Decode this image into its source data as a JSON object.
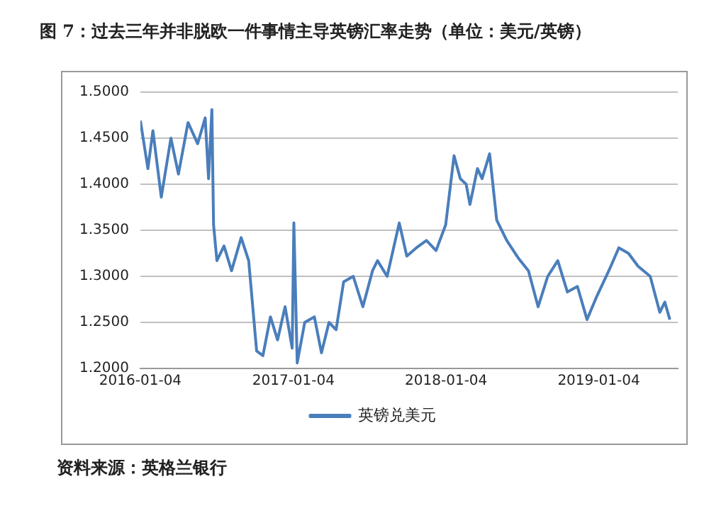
{
  "chart_data": {
    "type": "line",
    "title": "图 7：过去三年并非脱欧一件事情主导英镑汇率走势（单位：美元/英镑）",
    "x": [
      "2016-01-04",
      "2016-01-22",
      "2016-02-03",
      "2016-02-23",
      "2016-03-17",
      "2016-04-04",
      "2016-04-27",
      "2016-05-20",
      "2016-06-07",
      "2016-06-15",
      "2016-06-23",
      "2016-06-27",
      "2016-07-05",
      "2016-07-22",
      "2016-08-09",
      "2016-09-01",
      "2016-09-19",
      "2016-10-08",
      "2016-10-23",
      "2016-11-10",
      "2016-11-27",
      "2016-12-15",
      "2017-01-01",
      "2017-01-05",
      "2017-01-13",
      "2017-01-31",
      "2017-02-23",
      "2017-03-12",
      "2017-03-30",
      "2017-04-16",
      "2017-05-04",
      "2017-05-27",
      "2017-06-19",
      "2017-07-12",
      "2017-07-24",
      "2017-08-16",
      "2017-09-14",
      "2017-10-02",
      "2017-10-25",
      "2017-11-18",
      "2017-12-11",
      "2018-01-03",
      "2018-01-23",
      "2018-02-07",
      "2018-02-21",
      "2018-03-02",
      "2018-03-20",
      "2018-03-31",
      "2018-04-18",
      "2018-05-05",
      "2018-05-29",
      "2018-06-27",
      "2018-07-20",
      "2018-08-12",
      "2018-09-04",
      "2018-09-28",
      "2018-10-21",
      "2018-11-14",
      "2018-12-07",
      "2018-12-30",
      "2019-01-28",
      "2019-02-21",
      "2019-03-16",
      "2019-04-08",
      "2019-05-07",
      "2019-05-30",
      "2019-06-11",
      "2019-06-23"
    ],
    "series": [
      {
        "name": "英镑兑美元",
        "color": "#4a7ebb",
        "values": [
          1.469,
          1.417,
          1.458,
          1.386,
          1.45,
          1.411,
          1.467,
          1.444,
          1.472,
          1.406,
          1.481,
          1.356,
          1.317,
          1.333,
          1.306,
          1.342,
          1.317,
          1.219,
          1.214,
          1.256,
          1.231,
          1.267,
          1.222,
          1.358,
          1.206,
          1.25,
          1.256,
          1.217,
          1.25,
          1.242,
          1.294,
          1.3,
          1.267,
          1.306,
          1.317,
          1.3,
          1.358,
          1.322,
          1.331,
          1.339,
          1.328,
          1.356,
          1.431,
          1.406,
          1.4,
          1.378,
          1.417,
          1.406,
          1.433,
          1.361,
          1.339,
          1.319,
          1.306,
          1.267,
          1.3,
          1.317,
          1.283,
          1.289,
          1.253,
          1.278,
          1.306,
          1.331,
          1.325,
          1.311,
          1.3,
          1.261,
          1.272,
          1.253
        ]
      }
    ],
    "xlim": [
      "2016-01-04",
      "2019-07-12"
    ],
    "xticks": [
      "2016-01-04",
      "2017-01-04",
      "2018-01-04",
      "2019-01-04"
    ],
    "ylim": [
      1.2,
      1.5
    ],
    "yticks": [
      {
        "value": 1.2,
        "label": "1.2000"
      },
      {
        "value": 1.25,
        "label": "1.2500"
      },
      {
        "value": 1.3,
        "label": "1.3000"
      },
      {
        "value": 1.35,
        "label": "1.3500"
      },
      {
        "value": 1.4,
        "label": "1.4000"
      },
      {
        "value": 1.45,
        "label": "1.4500"
      },
      {
        "value": 1.5,
        "label": "1.5000"
      }
    ],
    "grid": "y",
    "legend": "bottom",
    "marker": "none",
    "line_style": "solid",
    "annotations": [
      "资料来源：英格兰银行"
    ]
  }
}
